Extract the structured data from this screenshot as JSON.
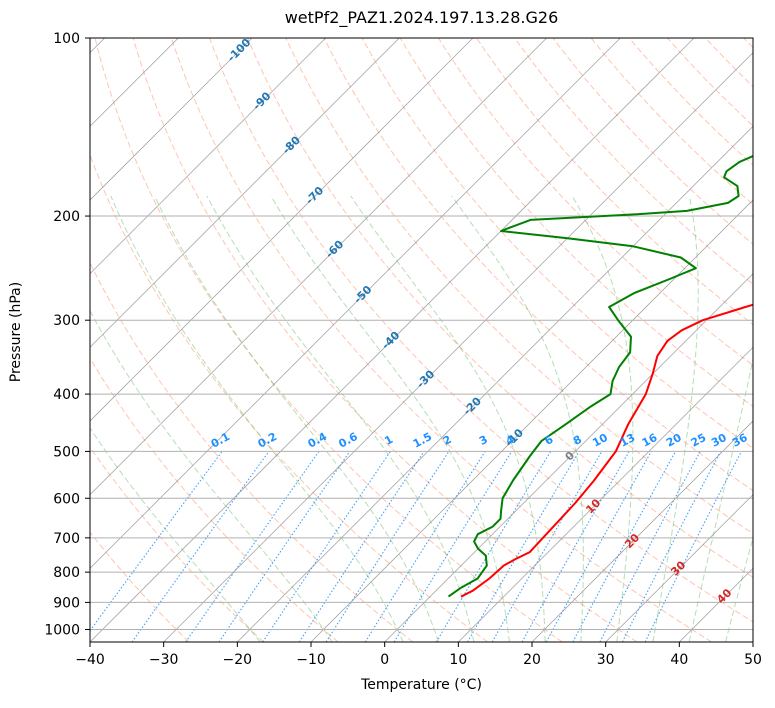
{
  "chart_data": {
    "type": "line",
    "title": "wetPf2_PAZ1.2024.197.13.28.G26",
    "xlabel": "Temperature (°C)",
    "ylabel": "Pressure (hPa)",
    "xlim": [
      -40,
      50
    ],
    "ylim": [
      1050,
      100
    ],
    "y_scale": "log",
    "grid": true,
    "x_ticks": [
      "−40",
      "−30",
      "−20",
      "−10",
      "0",
      "10",
      "20",
      "30",
      "40",
      "50"
    ],
    "y_ticks": [
      "100",
      "200",
      "300",
      "400",
      "500",
      "600",
      "700",
      "800",
      "900",
      "1000"
    ],
    "x_tick_values": [
      -40,
      -30,
      -20,
      -10,
      0,
      10,
      20,
      30,
      40,
      50
    ],
    "y_tick_values": [
      100,
      200,
      300,
      400,
      500,
      600,
      700,
      800,
      900,
      1000
    ],
    "skew": 1,
    "series": [
      {
        "id": "temperature",
        "color": "#ff0000",
        "points": [
          [
            4.2,
            880
          ],
          [
            5.0,
            860
          ],
          [
            5.6,
            820
          ],
          [
            5.8,
            780
          ],
          [
            6.5,
            760
          ],
          [
            7.5,
            740
          ],
          [
            7.2,
            660
          ],
          [
            7.0,
            610
          ],
          [
            6.5,
            560
          ],
          [
            5.5,
            500
          ],
          [
            3.5,
            450
          ],
          [
            1.8,
            400
          ],
          [
            0.0,
            370
          ],
          [
            -1.8,
            345
          ],
          [
            -2.5,
            325
          ],
          [
            -2.0,
            312
          ],
          [
            -0.5,
            300
          ],
          [
            3.5,
            285
          ],
          [
            8.0,
            270
          ],
          [
            12.0,
            255
          ],
          [
            15.0,
            240
          ],
          [
            17.5,
            225
          ],
          [
            19.5,
            210
          ],
          [
            21.0,
            195
          ],
          [
            23.0,
            180
          ],
          [
            25.5,
            170
          ],
          [
            27.5,
            160
          ],
          [
            28.0,
            150
          ],
          [
            29.0,
            140
          ],
          [
            31.0,
            130
          ],
          [
            33.0,
            120
          ],
          [
            35.5,
            110
          ],
          [
            37.0,
            100
          ]
        ]
      },
      {
        "id": "dewpoint",
        "color": "#008000",
        "points": [
          [
            2.5,
            880
          ],
          [
            3.0,
            850
          ],
          [
            4.0,
            820
          ],
          [
            3.5,
            780
          ],
          [
            2.0,
            750
          ],
          [
            0.0,
            730
          ],
          [
            -1.5,
            710
          ],
          [
            -2.0,
            690
          ],
          [
            -1.0,
            670
          ],
          [
            -1.0,
            650
          ],
          [
            -2.0,
            630
          ],
          [
            -3.5,
            600
          ],
          [
            -4.5,
            560
          ],
          [
            -5.5,
            510
          ],
          [
            -6.0,
            480
          ],
          [
            -5.0,
            450
          ],
          [
            -4.0,
            420
          ],
          [
            -3.0,
            400
          ],
          [
            -4.5,
            380
          ],
          [
            -5.5,
            360
          ],
          [
            -6.0,
            340
          ],
          [
            -8.0,
            320
          ],
          [
            -12.0,
            300
          ],
          [
            -15.0,
            285
          ],
          [
            -13.5,
            270
          ],
          [
            -10.5,
            255
          ],
          [
            -8.5,
            245
          ],
          [
            -12.0,
            235
          ],
          [
            -20.0,
            225
          ],
          [
            -30.0,
            218
          ],
          [
            -40.0,
            212
          ],
          [
            -37.5,
            203
          ],
          [
            -25.0,
            199
          ],
          [
            -17.5,
            196
          ],
          [
            -13.0,
            190
          ],
          [
            -12.5,
            185
          ],
          [
            -14.0,
            178
          ],
          [
            -17.0,
            172
          ],
          [
            -17.5,
            168
          ],
          [
            -17.0,
            162
          ],
          [
            -15.0,
            155
          ],
          [
            -12.0,
            145
          ],
          [
            -9.0,
            135
          ],
          [
            -6.0,
            125
          ],
          [
            -4.0,
            117
          ],
          [
            -2.0,
            110
          ],
          [
            1.0,
            100
          ]
        ]
      }
    ],
    "isotherm_labels": [
      {
        "text": "-100",
        "t": -100,
        "color": "#1f77b4"
      },
      {
        "text": "-90",
        "t": -90,
        "color": "#1f77b4"
      },
      {
        "text": "-80",
        "t": -80,
        "color": "#1f77b4"
      },
      {
        "text": "-70",
        "t": -70,
        "color": "#1f77b4"
      },
      {
        "text": "-60",
        "t": -60,
        "color": "#1f77b4"
      },
      {
        "text": "-50",
        "t": -50,
        "color": "#1f77b4"
      },
      {
        "text": "-40",
        "t": -40,
        "color": "#1f77b4"
      },
      {
        "text": "-30",
        "t": -30,
        "color": "#1f77b4"
      },
      {
        "text": "-20",
        "t": -20,
        "color": "#1f77b4"
      },
      {
        "text": "-10",
        "t": -10,
        "color": "#1f77b4"
      },
      {
        "text": "0",
        "t": 0,
        "color": "#7f7f7f"
      },
      {
        "text": "10",
        "t": 10,
        "color": "#d62728"
      },
      {
        "text": "20",
        "t": 20,
        "color": "#d62728"
      },
      {
        "text": "30",
        "t": 30,
        "color": "#d62728"
      },
      {
        "text": "40",
        "t": 40,
        "color": "#d62728"
      }
    ],
    "mixing_ratio_labels": [
      "0.1",
      "0.2",
      "0.4",
      "0.6",
      "1",
      "1.5",
      "2",
      "3",
      "4",
      "6",
      "8",
      "10",
      "13",
      "16",
      "20",
      "25",
      "30",
      "36"
    ],
    "mixing_ratio_color": "#1e90ff",
    "colors": {
      "grid": "#b0b0b0",
      "isotherm": "#808080",
      "dry_adiabat": "#ff7f50",
      "moist_adiabat": "#2ca02c",
      "mixing_ratio": "#1e90ff"
    }
  }
}
